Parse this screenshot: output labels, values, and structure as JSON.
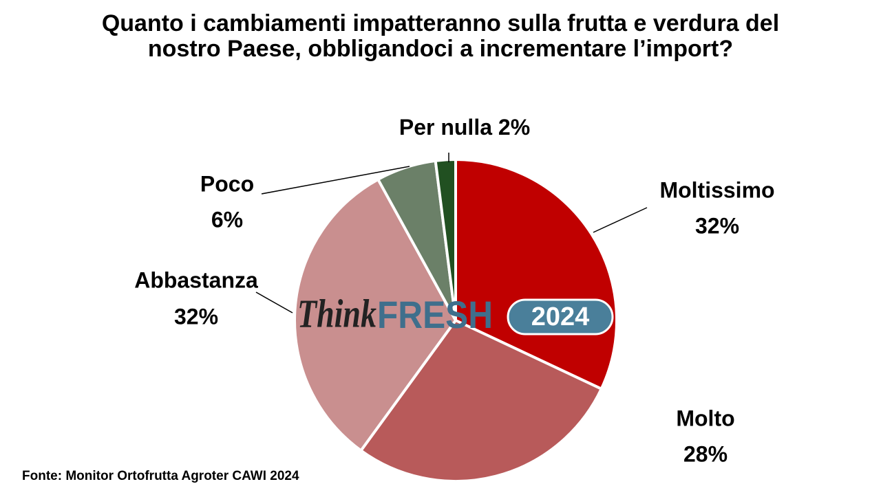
{
  "chart_data": {
    "type": "pie",
    "title": [
      "Quanto i cambiamenti impatteranno sulla frutta e verdura del",
      "nostro Paese, obbligandoci a incrementare l’import?"
    ],
    "categories": [
      "Moltissimo",
      "Molto",
      "Abbastanza",
      "Poco",
      "Per nulla"
    ],
    "values": [
      32,
      28,
      32,
      6,
      2
    ],
    "value_labels": [
      "32%",
      "28%",
      "32%",
      "6%",
      "2%"
    ],
    "colors": [
      "#c00000",
      "#b85a5a",
      "#c98f8f",
      "#6b8068",
      "#215021"
    ],
    "source": "Fonte: Monitor Ortofrutta Agroter CAWI 2024",
    "logo": {
      "think": "Think",
      "fresh": "FRESH",
      "year": "2024"
    }
  }
}
